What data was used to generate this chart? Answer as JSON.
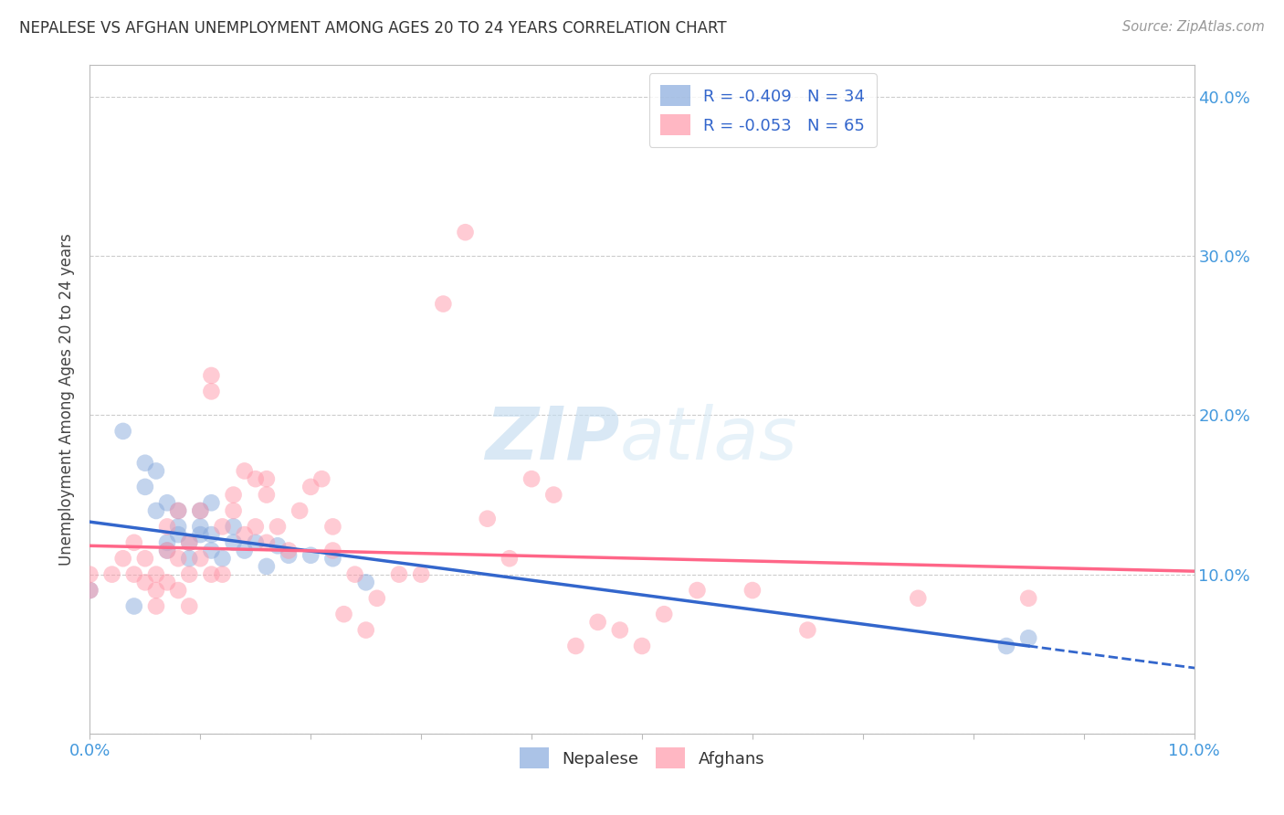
{
  "title": "NEPALESE VS AFGHAN UNEMPLOYMENT AMONG AGES 20 TO 24 YEARS CORRELATION CHART",
  "source": "Source: ZipAtlas.com",
  "ylabel": "Unemployment Among Ages 20 to 24 years",
  "xlim": [
    0.0,
    0.1
  ],
  "ylim": [
    0.0,
    0.42
  ],
  "yticks": [
    0.0,
    0.1,
    0.2,
    0.3,
    0.4
  ],
  "xticks": [
    0.0,
    0.01,
    0.02,
    0.03,
    0.04,
    0.05,
    0.06,
    0.07,
    0.08,
    0.09,
    0.1
  ],
  "xtick_labels_show": [
    "0.0%",
    "",
    "",
    "",
    "",
    "",
    "",
    "",
    "",
    "",
    "10.0%"
  ],
  "ytick_labels": [
    "",
    "10.0%",
    "20.0%",
    "30.0%",
    "40.0%"
  ],
  "nepalese_color": "#88aadd",
  "afghan_color": "#ff99aa",
  "nepalese_line_color": "#3366cc",
  "afghan_line_color": "#ff6688",
  "nepalese_R": -0.409,
  "nepalese_N": 34,
  "afghan_R": -0.053,
  "afghan_N": 65,
  "nepalese_x": [
    0.0,
    0.003,
    0.004,
    0.005,
    0.005,
    0.006,
    0.006,
    0.007,
    0.007,
    0.007,
    0.008,
    0.008,
    0.008,
    0.009,
    0.009,
    0.01,
    0.01,
    0.01,
    0.011,
    0.011,
    0.011,
    0.012,
    0.013,
    0.013,
    0.014,
    0.015,
    0.016,
    0.017,
    0.018,
    0.02,
    0.022,
    0.025,
    0.083,
    0.085
  ],
  "nepalese_y": [
    0.09,
    0.19,
    0.08,
    0.17,
    0.155,
    0.14,
    0.165,
    0.12,
    0.145,
    0.115,
    0.13,
    0.125,
    0.14,
    0.12,
    0.11,
    0.125,
    0.13,
    0.14,
    0.145,
    0.115,
    0.125,
    0.11,
    0.12,
    0.13,
    0.115,
    0.12,
    0.105,
    0.118,
    0.112,
    0.112,
    0.11,
    0.095,
    0.055,
    0.06
  ],
  "afghan_x": [
    0.0,
    0.0,
    0.002,
    0.003,
    0.004,
    0.004,
    0.005,
    0.005,
    0.006,
    0.006,
    0.006,
    0.007,
    0.007,
    0.007,
    0.008,
    0.008,
    0.008,
    0.009,
    0.009,
    0.009,
    0.01,
    0.01,
    0.011,
    0.011,
    0.011,
    0.012,
    0.012,
    0.013,
    0.013,
    0.014,
    0.014,
    0.015,
    0.015,
    0.016,
    0.016,
    0.016,
    0.017,
    0.018,
    0.019,
    0.02,
    0.021,
    0.022,
    0.022,
    0.023,
    0.024,
    0.025,
    0.026,
    0.028,
    0.03,
    0.032,
    0.034,
    0.036,
    0.038,
    0.04,
    0.042,
    0.044,
    0.046,
    0.048,
    0.05,
    0.052,
    0.055,
    0.06,
    0.065,
    0.075,
    0.085
  ],
  "afghan_y": [
    0.1,
    0.09,
    0.1,
    0.11,
    0.12,
    0.1,
    0.095,
    0.11,
    0.1,
    0.08,
    0.09,
    0.095,
    0.13,
    0.115,
    0.11,
    0.09,
    0.14,
    0.1,
    0.12,
    0.08,
    0.11,
    0.14,
    0.1,
    0.215,
    0.225,
    0.1,
    0.13,
    0.15,
    0.14,
    0.165,
    0.125,
    0.16,
    0.13,
    0.15,
    0.16,
    0.12,
    0.13,
    0.115,
    0.14,
    0.155,
    0.16,
    0.115,
    0.13,
    0.075,
    0.1,
    0.065,
    0.085,
    0.1,
    0.1,
    0.27,
    0.315,
    0.135,
    0.11,
    0.16,
    0.15,
    0.055,
    0.07,
    0.065,
    0.055,
    0.075,
    0.09,
    0.09,
    0.065,
    0.085,
    0.085
  ],
  "watermark_zip": "ZIP",
  "watermark_atlas": "atlas",
  "background_color": "#ffffff",
  "grid_color": "#cccccc",
  "tick_color": "#4499dd"
}
